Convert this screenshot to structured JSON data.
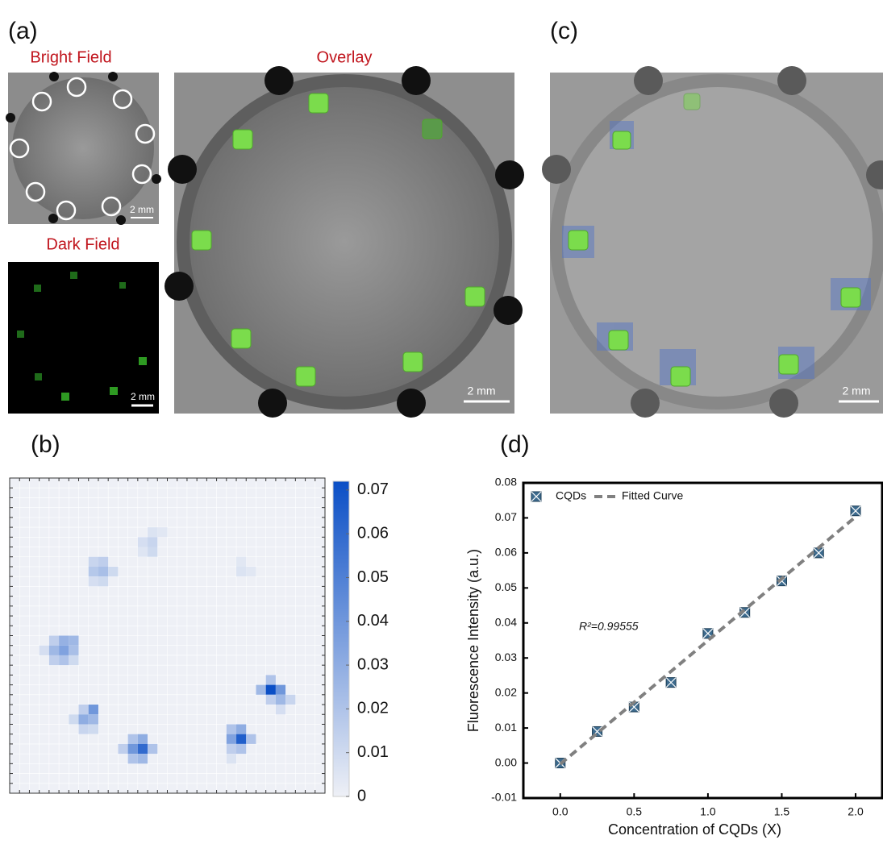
{
  "panels": {
    "a": "(a)",
    "b": "(b)",
    "c": "(c)",
    "d": "(d)"
  },
  "images": {
    "bright_field": {
      "title": "Bright Field",
      "scale_bar": "2 mm"
    },
    "dark_field": {
      "title": "Dark Field",
      "scale_bar": "2 mm"
    },
    "overlay": {
      "title": "Overlay",
      "scale_bar": "2 mm"
    },
    "fluorescence_overlay": {
      "scale_bar": "2 mm"
    }
  },
  "chart_data": [
    {
      "type": "heatmap",
      "colors": [
        "#eef0f6",
        "#0b4fc6"
      ],
      "zlim": [
        0,
        0.072
      ],
      "zticks": [
        0,
        0.01,
        0.02,
        0.03,
        0.04,
        0.05,
        0.06,
        0.07
      ],
      "cells": [
        {
          "row": 5,
          "col": 14,
          "value": 0.006
        },
        {
          "row": 5,
          "col": 15,
          "value": 0.004
        },
        {
          "row": 6,
          "col": 13,
          "value": 0.008
        },
        {
          "row": 6,
          "col": 14,
          "value": 0.012
        },
        {
          "row": 7,
          "col": 14,
          "value": 0.01
        },
        {
          "row": 7,
          "col": 13,
          "value": 0.005
        },
        {
          "row": 8,
          "col": 8,
          "value": 0.012
        },
        {
          "row": 8,
          "col": 9,
          "value": 0.015
        },
        {
          "row": 9,
          "col": 8,
          "value": 0.018
        },
        {
          "row": 9,
          "col": 9,
          "value": 0.022
        },
        {
          "row": 9,
          "col": 10,
          "value": 0.01
        },
        {
          "row": 10,
          "col": 8,
          "value": 0.008
        },
        {
          "row": 10,
          "col": 9,
          "value": 0.01
        },
        {
          "row": 8,
          "col": 23,
          "value": 0.004
        },
        {
          "row": 9,
          "col": 23,
          "value": 0.006
        },
        {
          "row": 9,
          "col": 24,
          "value": 0.004
        },
        {
          "row": 16,
          "col": 4,
          "value": 0.015
        },
        {
          "row": 16,
          "col": 5,
          "value": 0.028
        },
        {
          "row": 16,
          "col": 6,
          "value": 0.025
        },
        {
          "row": 17,
          "col": 3,
          "value": 0.008
        },
        {
          "row": 17,
          "col": 4,
          "value": 0.025
        },
        {
          "row": 17,
          "col": 5,
          "value": 0.035
        },
        {
          "row": 17,
          "col": 6,
          "value": 0.022
        },
        {
          "row": 18,
          "col": 4,
          "value": 0.015
        },
        {
          "row": 18,
          "col": 5,
          "value": 0.02
        },
        {
          "row": 18,
          "col": 6,
          "value": 0.01
        },
        {
          "row": 20,
          "col": 26,
          "value": 0.02
        },
        {
          "row": 21,
          "col": 25,
          "value": 0.025
        },
        {
          "row": 21,
          "col": 26,
          "value": 0.072
        },
        {
          "row": 21,
          "col": 27,
          "value": 0.04
        },
        {
          "row": 22,
          "col": 26,
          "value": 0.015
        },
        {
          "row": 22,
          "col": 27,
          "value": 0.025
        },
        {
          "row": 22,
          "col": 28,
          "value": 0.012
        },
        {
          "row": 23,
          "col": 27,
          "value": 0.008
        },
        {
          "row": 23,
          "col": 7,
          "value": 0.015
        },
        {
          "row": 23,
          "col": 8,
          "value": 0.04
        },
        {
          "row": 24,
          "col": 6,
          "value": 0.01
        },
        {
          "row": 24,
          "col": 7,
          "value": 0.03
        },
        {
          "row": 24,
          "col": 8,
          "value": 0.025
        },
        {
          "row": 25,
          "col": 7,
          "value": 0.012
        },
        {
          "row": 25,
          "col": 8,
          "value": 0.01
        },
        {
          "row": 26,
          "col": 12,
          "value": 0.02
        },
        {
          "row": 26,
          "col": 13,
          "value": 0.03
        },
        {
          "row": 27,
          "col": 11,
          "value": 0.015
        },
        {
          "row": 27,
          "col": 12,
          "value": 0.04
        },
        {
          "row": 27,
          "col": 13,
          "value": 0.06
        },
        {
          "row": 27,
          "col": 14,
          "value": 0.02
        },
        {
          "row": 28,
          "col": 12,
          "value": 0.02
        },
        {
          "row": 28,
          "col": 13,
          "value": 0.025
        },
        {
          "row": 25,
          "col": 22,
          "value": 0.02
        },
        {
          "row": 25,
          "col": 23,
          "value": 0.03
        },
        {
          "row": 26,
          "col": 22,
          "value": 0.035
        },
        {
          "row": 26,
          "col": 23,
          "value": 0.065
        },
        {
          "row": 26,
          "col": 24,
          "value": 0.02
        },
        {
          "row": 27,
          "col": 22,
          "value": 0.015
        },
        {
          "row": 27,
          "col": 23,
          "value": 0.02
        },
        {
          "row": 28,
          "col": 22,
          "value": 0.006
        }
      ]
    },
    {
      "type": "scatter",
      "x_label": "Concentration of CQDs (X)",
      "y_label": "Fluorescence Intensity (a.u.)",
      "annotation": "R²=0.99555",
      "xlim": [
        -0.25,
        2.18
      ],
      "ylim": [
        -0.01,
        0.08
      ],
      "xticks": [
        {
          "value": 0,
          "label": "0.0"
        },
        0.5,
        {
          "value": 1,
          "label": "1.0"
        },
        1.5,
        {
          "value": 2,
          "label": "2.0"
        }
      ],
      "yticks": [
        -0.01,
        {
          "value": 0,
          "label": "0.00"
        },
        0.01,
        0.02,
        0.03,
        0.04,
        0.05,
        0.06,
        0.07,
        0.08
      ],
      "series": [
        {
          "name": "CQDs",
          "color": "#3d6b8e",
          "x": [
            0,
            0.25,
            0.5,
            0.75,
            1,
            1.25,
            1.5,
            1.75,
            2
          ],
          "values": [
            0,
            0.009,
            0.016,
            0.023,
            0.037,
            0.043,
            0.052,
            0.06,
            0.072
          ]
        },
        {
          "name": "Fitted Curve",
          "color": "#808080",
          "x": [
            0,
            2
          ],
          "values": [
            -0.0003,
            0.0703
          ]
        }
      ]
    }
  ]
}
